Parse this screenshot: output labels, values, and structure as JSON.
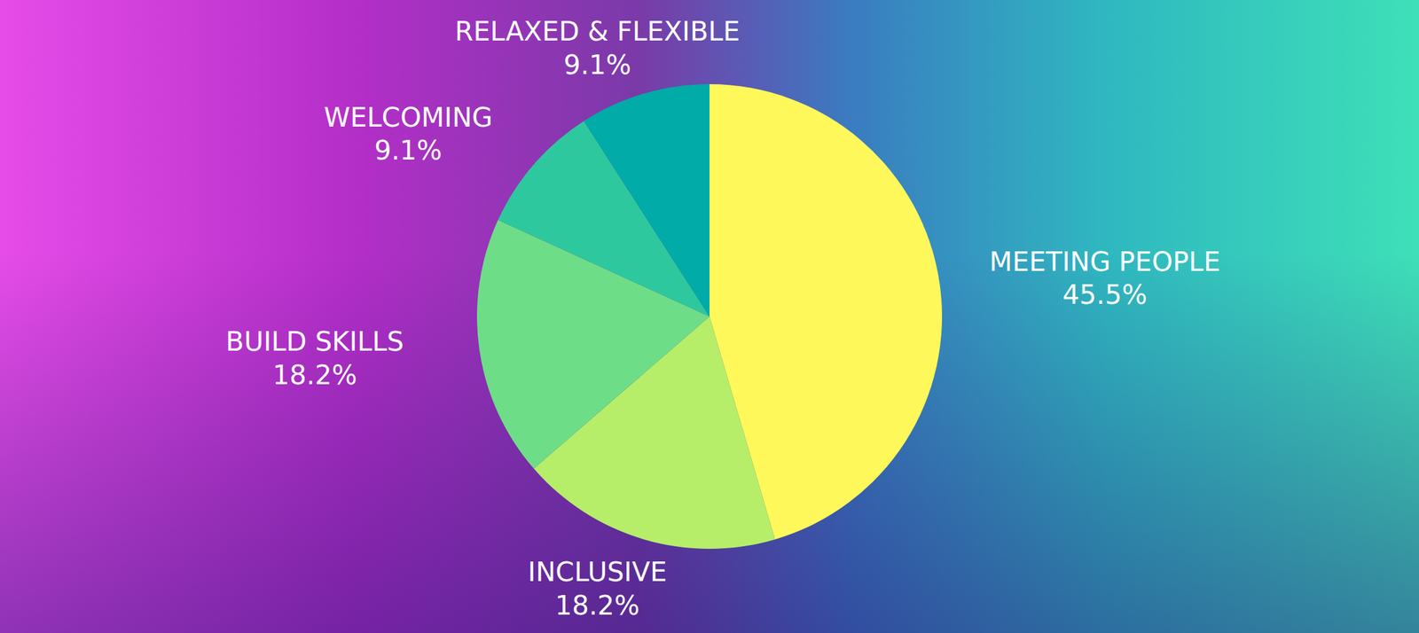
{
  "chart_data": {
    "type": "pie",
    "categories": [
      "MEETING PEOPLE",
      "INCLUSIVE",
      "BUILD SKILLS",
      "WELCOMING",
      "RELAXED & FLEXIBLE"
    ],
    "values": [
      45.5,
      18.2,
      18.2,
      9.1,
      9.1
    ],
    "value_labels": [
      "45.5%",
      "18.2%",
      "18.2%",
      "9.1%",
      "9.1%"
    ],
    "colors": [
      "#fff85a",
      "#b6ee6a",
      "#6edd88",
      "#2ec89e",
      "#00aba8"
    ],
    "data_labels": true
  }
}
